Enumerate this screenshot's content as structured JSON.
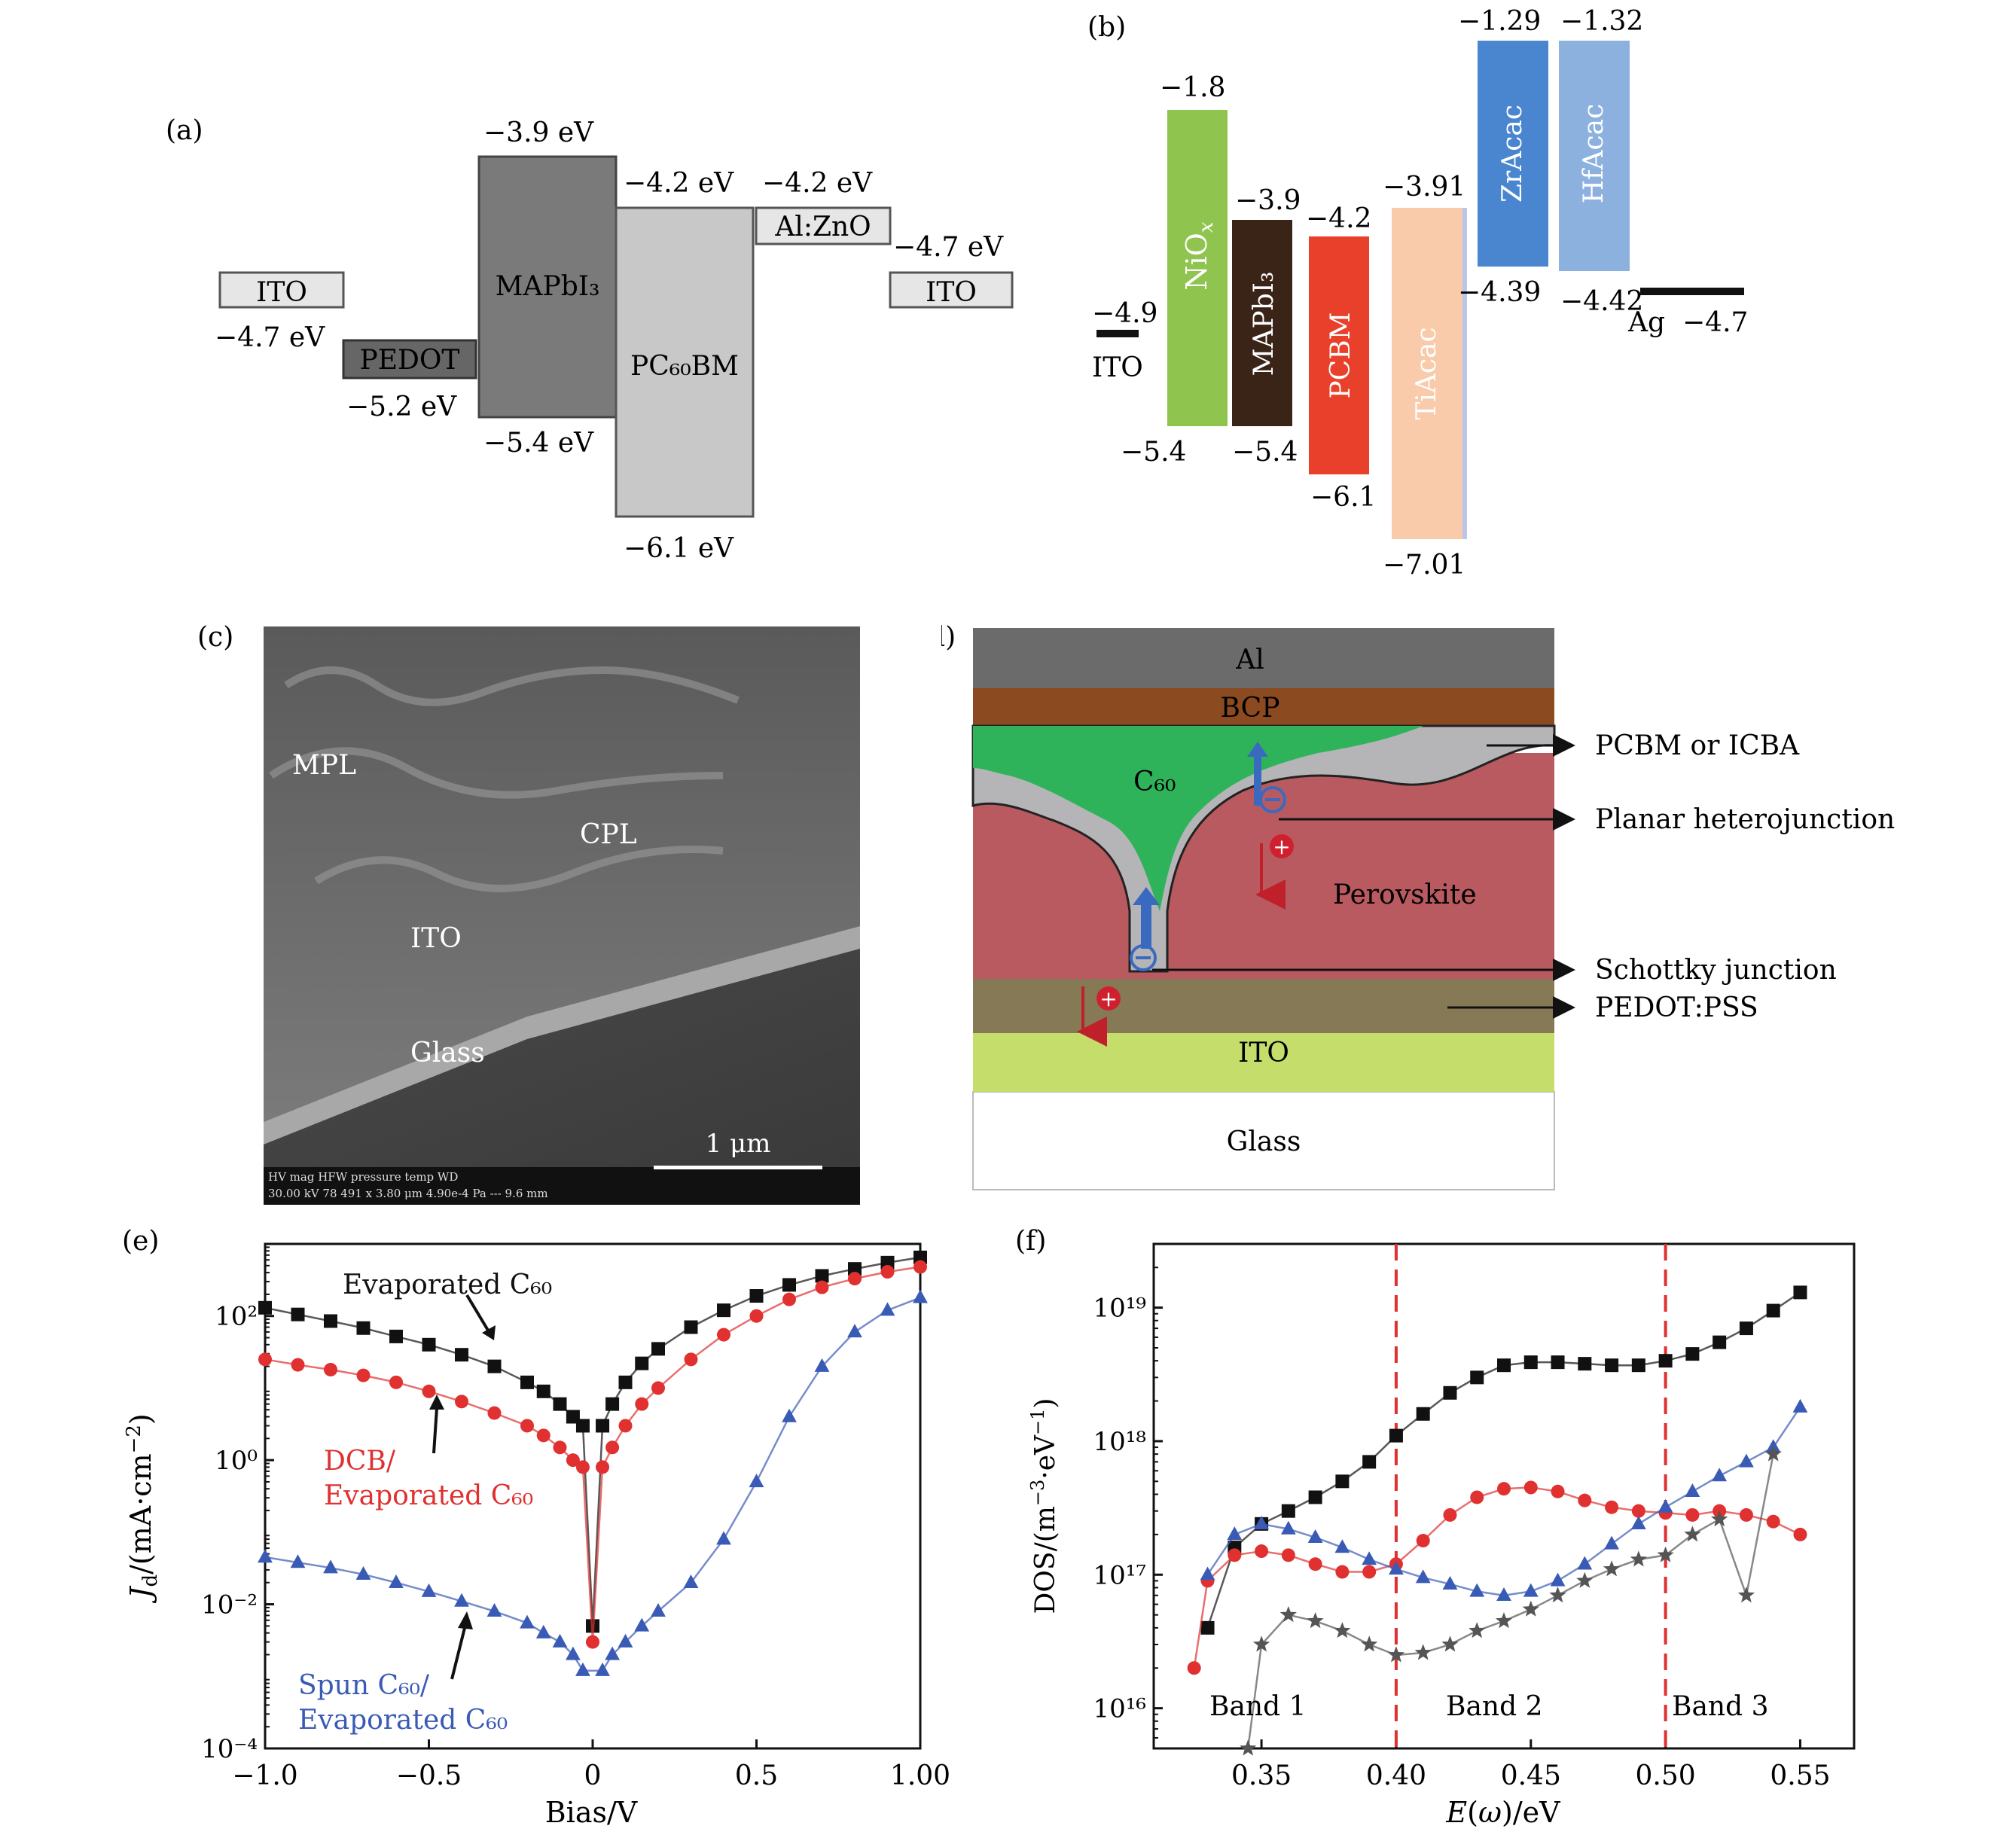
{
  "panel_a": {
    "label": "(a)",
    "layers": [
      {
        "name": "ITO",
        "top": "",
        "bottom": "−4.7 eV"
      },
      {
        "name": "PEDOT",
        "top": "",
        "bottom": "−5.2 eV"
      },
      {
        "name": "MAPbI₃",
        "top": "−3.9 eV",
        "bottom": "−5.4 eV"
      },
      {
        "name": "PC₆₀BM",
        "top": "−4.2 eV",
        "bottom": "−6.1 eV"
      },
      {
        "name": "Al:ZnO",
        "top": "−4.2 eV",
        "bottom": ""
      },
      {
        "name": "ITO",
        "top": "−4.7 eV",
        "bottom": ""
      }
    ]
  },
  "panel_b": {
    "label": "(b)",
    "ito": {
      "name": "ITO",
      "value": "−4.9"
    },
    "ag": {
      "name": "Ag",
      "value": "−4.7"
    },
    "layers": [
      {
        "name": "NiOx",
        "top": "−1.8",
        "bottom": "−5.4",
        "color": "#8fc44f"
      },
      {
        "name": "MAPbI₃",
        "top": "−3.9",
        "bottom": "−5.4",
        "color": "#3a2418"
      },
      {
        "name": "PCBM",
        "top": "−4.2",
        "bottom": "−6.1",
        "color": "#e8402a"
      },
      {
        "name": "TiAcac",
        "top": "−3.91",
        "bottom": "−7.01",
        "color": "#f9cbaa"
      },
      {
        "name": "ZrAcac",
        "top": "−1.29",
        "bottom": "−4.39",
        "color": "#4a86cf"
      },
      {
        "name": "HfAcac",
        "top": "−1.32",
        "bottom": "−4.42",
        "color": "#8db1df"
      }
    ]
  },
  "panel_c": {
    "label": "(c)",
    "labels": [
      "MPL",
      "CPL",
      "ITO",
      "Glass"
    ],
    "scalebar": "1 μm",
    "info_header": "HV    mag    HFW    pressure   temp   WD",
    "info_values": "30.00 kV 78 491 x 3.80 μm 4.90e-4 Pa  ---  9.6 mm"
  },
  "panel_d": {
    "label": "(d)",
    "layers": {
      "al": "Al",
      "bcp": "BCP",
      "c60": "C₆₀",
      "perovskite": "Perovskite",
      "ito": "ITO",
      "glass": "Glass"
    },
    "annotations": [
      "PCBM or ICBA",
      "Planar heterojunction",
      "Schottky junction",
      "PEDOT:PSS"
    ]
  },
  "panel_e": {
    "label": "(e)",
    "xlabel": "Bias/V",
    "ylabel": "J_d/(mA·cm⁻²)",
    "annotations": [
      "Evaporated C₆₀",
      "DCB/",
      "Evaporated C₆₀",
      "Spun C₆₀/",
      "Evaporated C₆₀"
    ]
  },
  "panel_f": {
    "label": "(f)",
    "xlabel": "E(ω)/eV",
    "ylabel": "DOS/(m⁻³·eV⁻¹)",
    "bands": [
      "Band 1",
      "Band 2",
      "Band 3"
    ]
  },
  "chart_data": [
    {
      "type": "scatter",
      "panel": "(e)",
      "xlabel": "Bias/V",
      "ylabel": "J_d/(mA·cm⁻²)",
      "xlim": [
        -1.0,
        1.0
      ],
      "ylim": [
        0.0001,
        1000
      ],
      "yscale": "log",
      "xticks": [
        "−1.0",
        "−0.5",
        "0",
        "0.5",
        "1.00"
      ],
      "yticks": [
        "10⁻⁴",
        "10⁻²",
        "10⁰",
        "10²"
      ],
      "series": [
        {
          "color": "#111111",
          "marker": "square",
          "x": [
            -1.0,
            -0.9,
            -0.8,
            -0.7,
            -0.6,
            -0.5,
            -0.4,
            -0.3,
            -0.2,
            -0.15,
            -0.1,
            -0.06,
            -0.03,
            0.0,
            0.03,
            0.06,
            0.1,
            0.15,
            0.2,
            0.3,
            0.4,
            0.5,
            0.6,
            0.7,
            0.8,
            0.9,
            1.0
          ],
          "y": [
            130,
            105,
            85,
            68,
            52,
            40,
            29,
            20,
            12,
            9,
            6,
            4,
            3,
            0.005,
            3,
            6,
            12,
            22,
            35,
            70,
            120,
            190,
            270,
            360,
            450,
            550,
            650
          ]
        },
        {
          "color": "#e03030",
          "marker": "circle",
          "x": [
            -1.0,
            -0.9,
            -0.8,
            -0.7,
            -0.6,
            -0.5,
            -0.4,
            -0.3,
            -0.2,
            -0.15,
            -0.1,
            -0.06,
            -0.03,
            0.0,
            0.03,
            0.06,
            0.1,
            0.15,
            0.2,
            0.3,
            0.4,
            0.5,
            0.6,
            0.7,
            0.8,
            0.9,
            1.0
          ],
          "y": [
            25,
            21,
            18,
            15,
            12,
            9,
            6.5,
            4.5,
            3,
            2.2,
            1.5,
            1,
            0.8,
            0.003,
            0.8,
            1.5,
            3,
            6,
            10,
            25,
            55,
            100,
            170,
            250,
            330,
            410,
            480
          ]
        },
        {
          "color": "#3a5bb5",
          "marker": "triangle",
          "x": [
            -1.0,
            -0.9,
            -0.8,
            -0.7,
            -0.6,
            -0.5,
            -0.4,
            -0.3,
            -0.2,
            -0.15,
            -0.1,
            -0.06,
            -0.03,
            0.03,
            0.06,
            0.1,
            0.15,
            0.2,
            0.3,
            0.4,
            0.5,
            0.6,
            0.7,
            0.8,
            0.9,
            1.0
          ],
          "y": [
            0.045,
            0.038,
            0.032,
            0.026,
            0.02,
            0.015,
            0.011,
            0.008,
            0.0055,
            0.004,
            0.003,
            0.002,
            0.0012,
            0.0012,
            0.002,
            0.003,
            0.005,
            0.008,
            0.02,
            0.08,
            0.5,
            4,
            20,
            60,
            120,
            180
          ]
        }
      ]
    },
    {
      "type": "scatter",
      "panel": "(f)",
      "xlabel": "E(ω)/eV",
      "ylabel": "DOS/(m⁻³·eV⁻¹)",
      "xlim": [
        0.31,
        0.57
      ],
      "ylim": [
        5000000000000000.0,
        3e+19
      ],
      "yscale": "log",
      "xticks": [
        "0.35",
        "0.40",
        "0.45",
        "0.50",
        "0.55"
      ],
      "yticks": [
        "10¹⁶",
        "10¹⁷",
        "10¹⁸",
        "10¹⁹"
      ],
      "vlines": [
        0.4,
        0.5
      ],
      "series": [
        {
          "color": "#111111",
          "marker": "square",
          "x": [
            0.33,
            0.34,
            0.35,
            0.36,
            0.37,
            0.38,
            0.39,
            0.4,
            0.41,
            0.42,
            0.43,
            0.44,
            0.45,
            0.46,
            0.47,
            0.48,
            0.49,
            0.5,
            0.51,
            0.52,
            0.53,
            0.54,
            0.55
          ],
          "y": [
            4e+16,
            1.6e+17,
            2.4e+17,
            3e+17,
            3.8e+17,
            5e+17,
            7e+17,
            1.1e+18,
            1.6e+18,
            2.3e+18,
            3e+18,
            3.7e+18,
            3.9e+18,
            3.9e+18,
            3.8e+18,
            3.7e+18,
            3.7e+18,
            4e+18,
            4.5e+18,
            5.5e+18,
            7e+18,
            9.5e+18,
            1.3e+19
          ]
        },
        {
          "color": "#e03030",
          "marker": "circle",
          "x": [
            0.325,
            0.33,
            0.34,
            0.35,
            0.36,
            0.37,
            0.38,
            0.39,
            0.4,
            0.41,
            0.42,
            0.43,
            0.44,
            0.45,
            0.46,
            0.47,
            0.48,
            0.49,
            0.5,
            0.51,
            0.52,
            0.53,
            0.54,
            0.55
          ],
          "y": [
            2e+16,
            9e+16,
            1.4e+17,
            1.5e+17,
            1.4e+17,
            1.2e+17,
            1.05e+17,
            1.05e+17,
            1.2e+17,
            1.8e+17,
            2.8e+17,
            3.8e+17,
            4.4e+17,
            4.5e+17,
            4.2e+17,
            3.6e+17,
            3.2e+17,
            3e+17,
            2.9e+17,
            2.8e+17,
            3e+17,
            2.8e+17,
            2.5e+17,
            2e+17
          ]
        },
        {
          "color": "#3a5bb5",
          "marker": "triangle",
          "x": [
            0.33,
            0.34,
            0.35,
            0.36,
            0.37,
            0.38,
            0.39,
            0.4,
            0.41,
            0.42,
            0.43,
            0.44,
            0.45,
            0.46,
            0.47,
            0.48,
            0.49,
            0.5,
            0.51,
            0.52,
            0.53,
            0.54,
            0.55
          ],
          "y": [
            1e+17,
            2e+17,
            2.4e+17,
            2.2e+17,
            1.9e+17,
            1.6e+17,
            1.3e+17,
            1.1e+17,
            9.5e+16,
            8.5e+16,
            7.5e+16,
            7e+16,
            7.5e+16,
            9e+16,
            1.2e+17,
            1.7e+17,
            2.4e+17,
            3.2e+17,
            4.2e+17,
            5.5e+17,
            7e+17,
            9e+17,
            1.8e+18
          ]
        },
        {
          "color": "#555555",
          "marker": "star",
          "x": [
            0.345,
            0.35,
            0.36,
            0.37,
            0.38,
            0.39,
            0.4,
            0.41,
            0.42,
            0.43,
            0.44,
            0.45,
            0.46,
            0.47,
            0.48,
            0.49,
            0.5,
            0.51,
            0.52,
            0.53,
            0.54
          ],
          "y": [
            5000000000000000.0,
            3e+16,
            5e+16,
            4.5e+16,
            3.8e+16,
            3e+16,
            2.5e+16,
            2.6e+16,
            3e+16,
            3.8e+16,
            4.5e+16,
            5.5e+16,
            7e+16,
            9e+16,
            1.1e+17,
            1.3e+17,
            1.4e+17,
            2e+17,
            2.6e+17,
            7e+16,
            8e+17
          ]
        }
      ]
    }
  ]
}
